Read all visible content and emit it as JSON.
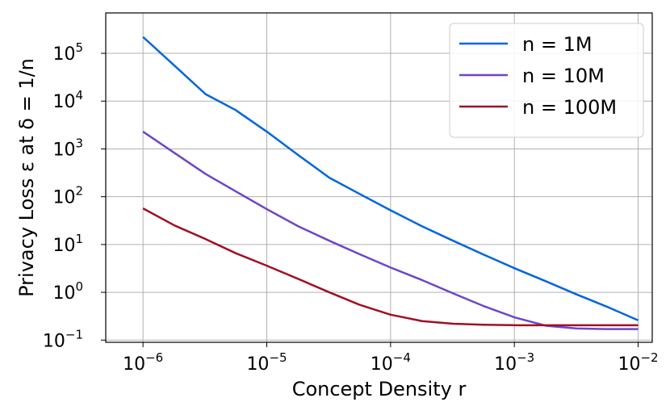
{
  "chart_data": {
    "type": "line",
    "xlabel": "Concept Density r",
    "ylabel": "Privacy Loss ε at δ = 1/n",
    "x_scale": "log",
    "y_scale": "log",
    "xlim": [
      5e-07,
      0.013
    ],
    "ylim": [
      0.09,
      700000
    ],
    "grid": true,
    "legend_position": "top-right",
    "x": [
      1e-06,
      1.8e-06,
      3.2e-06,
      5.6e-06,
      1e-05,
      1.8e-05,
      3.2e-05,
      5.6e-05,
      0.0001,
      0.00018,
      0.00032,
      0.00056,
      0.001,
      0.0018,
      0.0032,
      0.0056,
      0.01
    ],
    "series": [
      {
        "name": "n = 1M",
        "color": "#0066dd",
        "values": [
          220000,
          55000,
          14000,
          6500,
          2300,
          740,
          250,
          115,
          52,
          24,
          12,
          6.2,
          3.2,
          1.7,
          0.9,
          0.5,
          0.26
        ]
      },
      {
        "name": "n = 10M",
        "color": "#6d45cc",
        "values": [
          2300,
          820,
          300,
          130,
          55,
          24,
          12,
          6.3,
          3.3,
          1.8,
          0.95,
          0.52,
          0.3,
          0.2,
          0.175,
          0.17,
          0.17
        ]
      },
      {
        "name": "n = 100M",
        "color": "#a01026",
        "values": [
          57,
          25,
          13,
          6.6,
          3.6,
          1.9,
          1.0,
          0.55,
          0.34,
          0.25,
          0.22,
          0.21,
          0.205,
          0.205,
          0.205,
          0.205,
          0.205
        ]
      }
    ],
    "xticks": [
      {
        "value": 1e-06,
        "base": "10",
        "exp": "−6"
      },
      {
        "value": 1e-05,
        "base": "10",
        "exp": "−5"
      },
      {
        "value": 0.0001,
        "base": "10",
        "exp": "−4"
      },
      {
        "value": 0.001,
        "base": "10",
        "exp": "−3"
      },
      {
        "value": 0.01,
        "base": "10",
        "exp": "−2"
      }
    ],
    "yticks": [
      {
        "value": 0.1,
        "base": "10",
        "exp": "−1"
      },
      {
        "value": 1,
        "base": "10",
        "exp": "0"
      },
      {
        "value": 10,
        "base": "10",
        "exp": "1"
      },
      {
        "value": 100,
        "base": "10",
        "exp": "2"
      },
      {
        "value": 1000,
        "base": "10",
        "exp": "3"
      },
      {
        "value": 10000,
        "base": "10",
        "exp": "4"
      },
      {
        "value": 100000,
        "base": "10",
        "exp": "5"
      }
    ]
  }
}
